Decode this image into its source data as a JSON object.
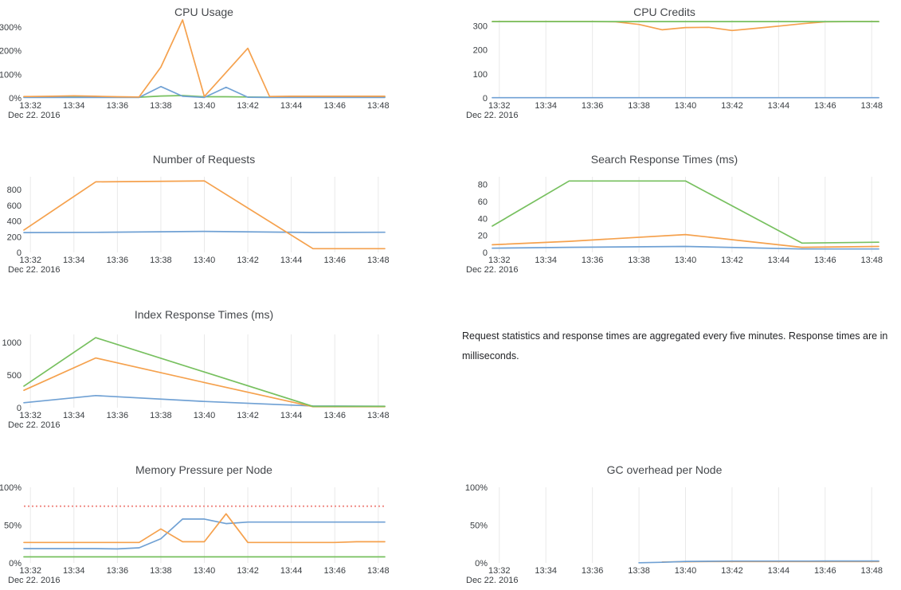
{
  "palette": {
    "blue": "#70a1d4",
    "orange": "#f5a14d",
    "green": "#77c05f",
    "red": "#f08c85",
    "grid": "#e9e9e9",
    "title_color": "#45484c",
    "tick_color": "#393d41"
  },
  "x_axis": {
    "tick_labels": [
      "13:32",
      "13:34",
      "13:36",
      "13:38",
      "13:40",
      "13:42",
      "13:44",
      "13:46",
      "13:48"
    ],
    "date_label": "Dec 22. 2016",
    "x_unit": "minutes after 13:30, Dec 22 2016"
  },
  "note": {
    "text": "Request statistics and response times are aggregated every five minutes. Response times are in milliseconds."
  },
  "chart_data": [
    {
      "id": "cpu-usage",
      "type": "line",
      "title": "CPU Usage",
      "grid": false,
      "ymax": 330,
      "ylim": [
        0,
        330
      ],
      "y_ticks": [
        {
          "v": 0,
          "label": "0%"
        },
        {
          "v": 100,
          "label": "100%"
        },
        {
          "v": 200,
          "label": "200%"
        },
        {
          "v": 300,
          "label": "300%"
        }
      ],
      "series": [
        {
          "name": "green",
          "color": "green",
          "points": [
            [
              1.7,
              4
            ],
            [
              2,
              4
            ],
            [
              3,
              5
            ],
            [
              4,
              5
            ],
            [
              5,
              4
            ],
            [
              6,
              4
            ],
            [
              7,
              3
            ],
            [
              8,
              8
            ],
            [
              9,
              10
            ],
            [
              10,
              5
            ],
            [
              11,
              5
            ],
            [
              12,
              4
            ],
            [
              13,
              3
            ],
            [
              14,
              4
            ],
            [
              15,
              5
            ],
            [
              16,
              5
            ],
            [
              17,
              5
            ],
            [
              18,
              5
            ],
            [
              18.3,
              5
            ]
          ]
        },
        {
          "name": "blue",
          "color": "blue",
          "points": [
            [
              1.7,
              2
            ],
            [
              2,
              2
            ],
            [
              3,
              2
            ],
            [
              4,
              2
            ],
            [
              5,
              2
            ],
            [
              6,
              2
            ],
            [
              7,
              2
            ],
            [
              8,
              48
            ],
            [
              9,
              7
            ],
            [
              10,
              2
            ],
            [
              11,
              45
            ],
            [
              12,
              3
            ],
            [
              13,
              2
            ],
            [
              14,
              2
            ],
            [
              15,
              2
            ],
            [
              16,
              2
            ],
            [
              17,
              2
            ],
            [
              18,
              2
            ],
            [
              18.3,
              2
            ]
          ]
        },
        {
          "name": "orange",
          "color": "orange",
          "points": [
            [
              1.7,
              6
            ],
            [
              2,
              6
            ],
            [
              3,
              7
            ],
            [
              4,
              9
            ],
            [
              5,
              7
            ],
            [
              6,
              5
            ],
            [
              7,
              4
            ],
            [
              8,
              130
            ],
            [
              9,
              330
            ],
            [
              10,
              6
            ],
            [
              11,
              108
            ],
            [
              12,
              210
            ],
            [
              13,
              6
            ],
            [
              14,
              7
            ],
            [
              15,
              7
            ],
            [
              16,
              7
            ],
            [
              17,
              7
            ],
            [
              18,
              7
            ],
            [
              18.3,
              7
            ]
          ]
        }
      ]
    },
    {
      "id": "cpu-credits",
      "type": "line",
      "title": "CPU Credits",
      "grid": true,
      "ymax": 325,
      "ylim": [
        0,
        325
      ],
      "y_ticks": [
        {
          "v": 0,
          "label": "0"
        },
        {
          "v": 100,
          "label": "100"
        },
        {
          "v": 200,
          "label": "200"
        },
        {
          "v": 300,
          "label": "300"
        }
      ],
      "series": [
        {
          "name": "blue",
          "color": "blue",
          "points": [
            [
              1.7,
              1
            ],
            [
              5,
              1
            ],
            [
              10,
              1
            ],
            [
              15,
              1
            ],
            [
              18.3,
              1
            ]
          ]
        },
        {
          "name": "orange",
          "color": "orange",
          "points": [
            [
              1.7,
              318
            ],
            [
              2,
              318
            ],
            [
              3,
              318
            ],
            [
              4,
              318
            ],
            [
              5,
              318
            ],
            [
              6,
              318
            ],
            [
              7,
              317
            ],
            [
              8,
              306
            ],
            [
              9,
              284
            ],
            [
              10,
              293
            ],
            [
              11,
              294
            ],
            [
              12,
              281
            ],
            [
              13,
              290
            ],
            [
              14,
              299
            ],
            [
              15,
              309
            ],
            [
              16,
              317
            ],
            [
              17,
              318
            ],
            [
              18,
              318
            ],
            [
              18.3,
              318
            ]
          ]
        },
        {
          "name": "green",
          "color": "green",
          "points": [
            [
              1.7,
              318
            ],
            [
              5,
              318
            ],
            [
              10,
              318
            ],
            [
              15,
              318
            ],
            [
              18.3,
              318
            ]
          ]
        }
      ]
    },
    {
      "id": "number-of-requests",
      "type": "line",
      "title": "Number of Requests",
      "grid": true,
      "ymax": 965,
      "ylim": [
        0,
        965
      ],
      "y_ticks": [
        {
          "v": 0,
          "label": "0"
        },
        {
          "v": 200,
          "label": "200"
        },
        {
          "v": 400,
          "label": "400"
        },
        {
          "v": 600,
          "label": "600"
        },
        {
          "v": 800,
          "label": "800"
        }
      ],
      "series": [
        {
          "name": "blue",
          "color": "blue",
          "points": [
            [
              1.7,
              253
            ],
            [
              5,
              256
            ],
            [
              10,
              268
            ],
            [
              15,
              254
            ],
            [
              18.3,
              257
            ]
          ]
        },
        {
          "name": "orange",
          "color": "orange",
          "points": [
            [
              1.7,
              285
            ],
            [
              5,
              900
            ],
            [
              10,
              912
            ],
            [
              15,
              48
            ],
            [
              18.3,
              48
            ]
          ]
        }
      ]
    },
    {
      "id": "search-response-times",
      "type": "line",
      "title": "Search Response Times (ms)",
      "grid": true,
      "ymax": 89,
      "ylim": [
        0,
        89
      ],
      "y_ticks": [
        {
          "v": 0,
          "label": "0"
        },
        {
          "v": 20,
          "label": "20"
        },
        {
          "v": 40,
          "label": "40"
        },
        {
          "v": 60,
          "label": "60"
        },
        {
          "v": 80,
          "label": "80"
        }
      ],
      "series": [
        {
          "name": "blue",
          "color": "blue",
          "points": [
            [
              1.7,
              5
            ],
            [
              5,
              6
            ],
            [
              10,
              7
            ],
            [
              15,
              4
            ],
            [
              18.3,
              4
            ]
          ]
        },
        {
          "name": "orange",
          "color": "orange",
          "points": [
            [
              1.7,
              9
            ],
            [
              5,
              13
            ],
            [
              10,
              21
            ],
            [
              15,
              6
            ],
            [
              18.3,
              7
            ]
          ]
        },
        {
          "name": "green",
          "color": "green",
          "points": [
            [
              1.7,
              31
            ],
            [
              5,
              84
            ],
            [
              10,
              84
            ],
            [
              15,
              11
            ],
            [
              18.3,
              12
            ]
          ]
        }
      ]
    },
    {
      "id": "index-response-times",
      "type": "line",
      "title": "Index Response Times (ms)",
      "grid": true,
      "ymax": 1120,
      "ylim": [
        0,
        1120
      ],
      "y_ticks": [
        {
          "v": 0,
          "label": "0"
        },
        {
          "v": 500,
          "label": "500"
        },
        {
          "v": 1000,
          "label": "1000"
        }
      ],
      "series": [
        {
          "name": "blue",
          "color": "blue",
          "points": [
            [
              1.7,
              75
            ],
            [
              5,
              185
            ],
            [
              10,
              95
            ],
            [
              15,
              25
            ],
            [
              18.3,
              22
            ]
          ]
        },
        {
          "name": "orange",
          "color": "orange",
          "points": [
            [
              1.7,
              265
            ],
            [
              5,
              760
            ],
            [
              10,
              385
            ],
            [
              15,
              15
            ],
            [
              18.3,
              15
            ]
          ]
        },
        {
          "name": "green",
          "color": "green",
          "points": [
            [
              1.7,
              330
            ],
            [
              5,
              1070
            ],
            [
              10,
              545
            ],
            [
              15,
              20
            ],
            [
              18.3,
              20
            ]
          ]
        }
      ]
    },
    {
      "id": "memory-pressure",
      "type": "line",
      "title": "Memory Pressure per Node",
      "grid": true,
      "ymax": 100,
      "ylim": [
        0,
        100
      ],
      "threshold": {
        "value": 75,
        "color": "red"
      },
      "y_ticks": [
        {
          "v": 0,
          "label": "0%"
        },
        {
          "v": 50,
          "label": "50%"
        },
        {
          "v": 100,
          "label": "100%"
        }
      ],
      "series": [
        {
          "name": "green",
          "color": "green",
          "points": [
            [
              1.7,
              8
            ],
            [
              5,
              8
            ],
            [
              10,
              8
            ],
            [
              15,
              8
            ],
            [
              18.3,
              8
            ]
          ]
        },
        {
          "name": "blue",
          "color": "blue",
          "points": [
            [
              1.7,
              19
            ],
            [
              2,
              19
            ],
            [
              3,
              19
            ],
            [
              4,
              19
            ],
            [
              5,
              19
            ],
            [
              6,
              18.5
            ],
            [
              7,
              20
            ],
            [
              8,
              32
            ],
            [
              9,
              58
            ],
            [
              10,
              58
            ],
            [
              11,
              52
            ],
            [
              12,
              54
            ],
            [
              13,
              54
            ],
            [
              14,
              54
            ],
            [
              15,
              54
            ],
            [
              16,
              54
            ],
            [
              17,
              54
            ],
            [
              18,
              54
            ],
            [
              18.3,
              54
            ]
          ]
        },
        {
          "name": "orange",
          "color": "orange",
          "points": [
            [
              1.7,
              27
            ],
            [
              2,
              27
            ],
            [
              3,
              27
            ],
            [
              4,
              27
            ],
            [
              5,
              27
            ],
            [
              6,
              27
            ],
            [
              7,
              27
            ],
            [
              8,
              45
            ],
            [
              9,
              28
            ],
            [
              10,
              28
            ],
            [
              11,
              65
            ],
            [
              12,
              27
            ],
            [
              13,
              27
            ],
            [
              14,
              27
            ],
            [
              15,
              27
            ],
            [
              16,
              27
            ],
            [
              17,
              28
            ],
            [
              18,
              28
            ],
            [
              18.3,
              28
            ]
          ]
        }
      ]
    },
    {
      "id": "gc-overhead",
      "type": "line",
      "title": "GC overhead per Node",
      "grid": true,
      "ymax": 100,
      "ylim": [
        0,
        100
      ],
      "y_ticks": [
        {
          "v": 0,
          "label": "0%"
        },
        {
          "v": 50,
          "label": "50%"
        },
        {
          "v": 100,
          "label": "100%"
        }
      ],
      "series": [
        {
          "name": "orange",
          "color": "orange",
          "points": [
            [
              9,
              1.3
            ],
            [
              10,
              1.6
            ],
            [
              11,
              1.8
            ],
            [
              12,
              1.8
            ],
            [
              13,
              1.8
            ],
            [
              14,
              1.8
            ],
            [
              15,
              1.8
            ],
            [
              16,
              1.8
            ],
            [
              17,
              1.8
            ],
            [
              18,
              1.8
            ],
            [
              18.3,
              1.8
            ]
          ]
        },
        {
          "name": "blue",
          "color": "blue",
          "points": [
            [
              8,
              0.2
            ],
            [
              9,
              0.8
            ],
            [
              10,
              2
            ],
            [
              11,
              2.2
            ],
            [
              12,
              2.4
            ],
            [
              13,
              2.4
            ],
            [
              14,
              2.4
            ],
            [
              15,
              2.4
            ],
            [
              16,
              2.5
            ],
            [
              17,
              2.5
            ],
            [
              18,
              2.5
            ],
            [
              18.3,
              2.5
            ]
          ]
        }
      ]
    }
  ]
}
